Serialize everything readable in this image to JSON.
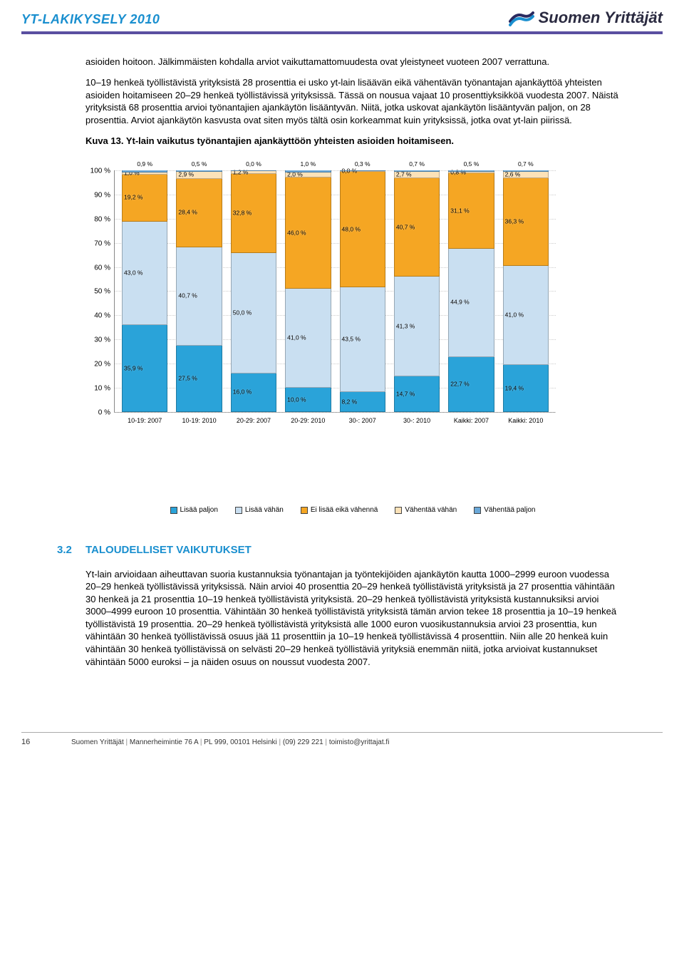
{
  "header": {
    "doc_title": "YT-LAKIKYSELY 2010",
    "brand": "Suomen Yrittäjät"
  },
  "body": {
    "p1": "asioiden hoitoon. Jälkimmäisten kohdalla arviot vaikuttamattomuudesta ovat yleistyneet vuoteen 2007 verrattuna.",
    "p2": "10–19 henkeä työllistävistä yrityksistä 28 prosenttia ei usko yt-lain lisäävän eikä vähentävän työnantajan ajankäyttöä yhteisten asioiden hoitamiseen 20–29 henkeä työllistävissä yrityksissä. Tässä on nousua vajaat 10 prosenttiyksikköä vuodesta 2007. Näistä yrityksistä 68 prosenttia arvioi työnantajien ajankäytön lisääntyvän. Niitä, jotka uskovat ajankäytön lisääntyvän paljon, on 28 prosenttia. Arviot ajankäytön kasvusta ovat siten myös tältä osin korkeammat kuin yrityksissä, jotka ovat yt-lain piirissä.",
    "fig_caption": "Kuva 13. Yt-lain vaikutus työnantajien ajankäyttöön yhteisten asioiden hoitamiseen.",
    "sec32_num": "3.2",
    "sec32_title": "TALOUDELLISET VAIKUTUKSET",
    "p3": "Yt-lain arvioidaan aiheuttavan suoria kustannuksia työnantajan ja työntekijöiden ajankäytön kautta 1000–2999 euroon vuodessa 20–29 henkeä työllistävissä yrityksissä. Näin arvioi 40 prosenttia 20–29 henkeä työllistävistä yrityksistä ja 27 prosenttia vähintään 30 henkeä ja 21 prosenttia 10–19 henkeä työllistävistä yrityksistä. 20–29 henkeä työllistävistä yrityksistä kustannuksiksi arvioi 3000–4999 euroon 10 prosenttia. Vähintään 30 henkeä työllistävistä yrityksistä tämän arvion tekee 18 prosenttia ja 10–19 henkeä työllistävistä 19 prosenttia. 20–29 henkeä työllistävistä yrityksistä alle 1000 euron vuosikustannuksia arvioi 23 prosenttia, kun vähintään 30 henkeä työllistävissä osuus jää 11 prosenttiin ja 10–19 henkeä työllistävissä 4 prosenttiin. Niin alle 20 henkeä kuin vähintään 30 henkeä työllistävissä on selvästi 20–29 henkeä työllistäviä yrityksiä enemmän niitä, jotka arvioivat kustannukset vähintään 5000 euroksi – ja näiden osuus on noussut vuodesta 2007."
  },
  "chart": {
    "ylim": [
      0,
      100
    ],
    "ytick_step": 10,
    "ylabel_suffix": " %",
    "categories": [
      "10-19: 2007",
      "10-19: 2010",
      "20-29: 2007",
      "20-29: 2010",
      "30-: 2007",
      "30-: 2010",
      "Kaikki: 2007",
      "Kaikki: 2010"
    ],
    "series": [
      {
        "name": "Lisää paljon",
        "color": "#2aa3d9"
      },
      {
        "name": "Lisää vähän",
        "color": "#c9dff1"
      },
      {
        "name": "Ei lisää eikä vähennä",
        "color": "#f5a623"
      },
      {
        "name": "Vähentää vähän",
        "color": "#fce2b8"
      },
      {
        "name": "Vähentää paljon",
        "color": "#6aa8d8"
      }
    ],
    "float_labels": [
      "0,9 %",
      "0,5 %",
      "0,0 %",
      "1,0 %",
      "0,3 %",
      "0,7 %",
      "0,5 %",
      "0,7 %"
    ],
    "stacks": [
      [
        {
          "v": 35.9,
          "l": "35,9 %"
        },
        {
          "v": 43.0,
          "l": "43,0 %"
        },
        {
          "v": 19.2,
          "l": "19,2 %"
        },
        {
          "v": 1.0,
          "l": "1,0 %"
        },
        {
          "v": 0.9,
          "l": ""
        }
      ],
      [
        {
          "v": 27.5,
          "l": "27,5 %"
        },
        {
          "v": 40.7,
          "l": "40,7 %"
        },
        {
          "v": 28.4,
          "l": "28,4 %"
        },
        {
          "v": 2.9,
          "l": "2,9 %"
        },
        {
          "v": 0.5,
          "l": ""
        }
      ],
      [
        {
          "v": 16.0,
          "l": "16,0 %"
        },
        {
          "v": 50.0,
          "l": "50,0 %"
        },
        {
          "v": 32.8,
          "l": "32,8 %"
        },
        {
          "v": 1.2,
          "l": "1,2 %"
        },
        {
          "v": 0.0,
          "l": ""
        }
      ],
      [
        {
          "v": 10.0,
          "l": "10,0 %"
        },
        {
          "v": 41.0,
          "l": "41,0 %"
        },
        {
          "v": 46.0,
          "l": "46,0 %"
        },
        {
          "v": 2.0,
          "l": "2,0 %"
        },
        {
          "v": 1.0,
          "l": ""
        }
      ],
      [
        {
          "v": 8.2,
          "l": "8,2 %"
        },
        {
          "v": 43.5,
          "l": "43,5 %"
        },
        {
          "v": 48.0,
          "l": "48,0 %"
        },
        {
          "v": 0.0,
          "l": "0,0 %"
        },
        {
          "v": 0.3,
          "l": ""
        }
      ],
      [
        {
          "v": 14.7,
          "l": "14,7 %"
        },
        {
          "v": 41.3,
          "l": "41,3 %"
        },
        {
          "v": 40.7,
          "l": "40,7 %"
        },
        {
          "v": 2.7,
          "l": "2,7 %"
        },
        {
          "v": 0.7,
          "l": ""
        }
      ],
      [
        {
          "v": 22.7,
          "l": "22,7 %"
        },
        {
          "v": 44.9,
          "l": "44,9 %"
        },
        {
          "v": 31.1,
          "l": "31,1 %"
        },
        {
          "v": 0.8,
          "l": "0,8 %"
        },
        {
          "v": 0.5,
          "l": ""
        }
      ],
      [
        {
          "v": 19.4,
          "l": "19,4 %"
        },
        {
          "v": 41.0,
          "l": "41,0 %"
        },
        {
          "v": 36.3,
          "l": "36,3 %"
        },
        {
          "v": 2.6,
          "l": "2,6 %"
        },
        {
          "v": 0.7,
          "l": ""
        }
      ]
    ]
  },
  "footer": {
    "page": "16",
    "org": "Suomen Yrittäjät",
    "addr": "Mannerheimintie 76 A",
    "box": "PL 999, 00101 Helsinki",
    "phone": "(09) 229 221",
    "email": "toimisto@yrittajat.fi"
  }
}
